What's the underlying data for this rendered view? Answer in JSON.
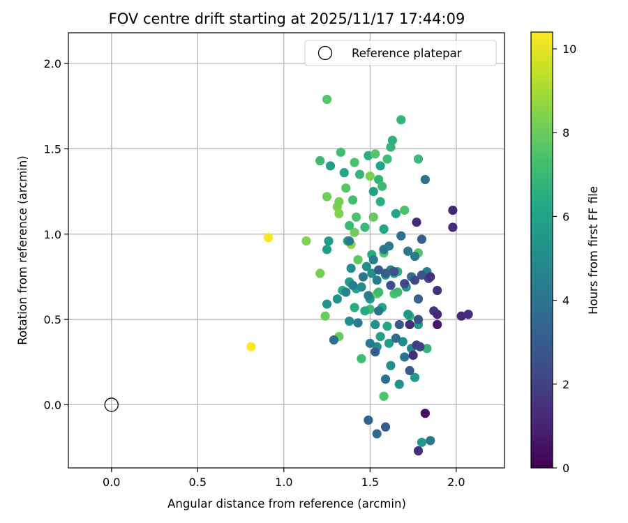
{
  "chart_data": {
    "type": "scatter",
    "title": "FOV centre drift starting at 2025/11/17 17:44:09",
    "xlabel": "Angular distance from reference (arcmin)",
    "ylabel": "Rotation from reference (arcmin)",
    "xlim": [
      -0.25,
      2.28
    ],
    "ylim": [
      -0.37,
      2.18
    ],
    "xticks": [
      0.0,
      0.5,
      1.0,
      1.5,
      2.0
    ],
    "xtick_labels": [
      "0.0",
      "0.5",
      "1.0",
      "1.5",
      "2.0"
    ],
    "yticks": [
      0.0,
      0.5,
      1.0,
      1.5,
      2.0
    ],
    "ytick_labels": [
      "0.0",
      "0.5",
      "1.0",
      "1.5",
      "2.0"
    ],
    "grid": true,
    "legend": {
      "position": "top-right",
      "entries": [
        "Reference platepar"
      ]
    },
    "reference": {
      "label": "Reference platepar",
      "x": 0.0,
      "y": 0.0
    },
    "colorbar": {
      "label": "Hours from first FF file",
      "colormap": "viridis",
      "min": 0,
      "max": 10.4,
      "ticks": [
        0,
        2,
        4,
        6,
        8,
        10
      ],
      "tick_labels": [
        "0",
        "2",
        "4",
        "6",
        "8",
        "10"
      ]
    },
    "colormap_stops": [
      "#440154",
      "#482475",
      "#414487",
      "#355f8d",
      "#2a788e",
      "#21918c",
      "#22a884",
      "#44bf70",
      "#7ad151",
      "#bddf26",
      "#fde725"
    ],
    "points": [
      [
        0.81,
        0.34,
        10.4
      ],
      [
        0.91,
        0.98,
        10.3
      ],
      [
        1.13,
        0.96,
        8.4
      ],
      [
        1.21,
        0.77,
        8.2
      ],
      [
        1.24,
        0.52,
        8.0
      ],
      [
        1.32,
        0.4,
        8.0
      ],
      [
        1.25,
        1.79,
        7.6
      ],
      [
        1.25,
        1.22,
        8.1
      ],
      [
        1.31,
        1.16,
        8.3
      ],
      [
        1.32,
        1.19,
        8.2
      ],
      [
        1.32,
        1.12,
        8.4
      ],
      [
        1.36,
        1.27,
        7.6
      ],
      [
        1.39,
        0.94,
        8.6
      ],
      [
        1.41,
        1.01,
        8.1
      ],
      [
        1.43,
        0.85,
        7.8
      ],
      [
        1.45,
        0.27,
        7.2
      ],
      [
        1.5,
        1.34,
        8.3
      ],
      [
        1.52,
        1.1,
        7.9
      ],
      [
        1.54,
        0.65,
        8.1
      ],
      [
        1.55,
        0.66,
        7.0
      ],
      [
        1.58,
        0.05,
        7.4
      ],
      [
        1.58,
        0.89,
        7.5
      ],
      [
        1.58,
        0.91,
        8.0
      ],
      [
        1.6,
        1.44,
        7.2
      ],
      [
        1.64,
        0.65,
        7.5
      ],
      [
        1.66,
        0.66,
        7.0
      ],
      [
        1.68,
        1.67,
        6.8
      ],
      [
        1.7,
        1.14,
        7.4
      ],
      [
        1.73,
        0.52,
        6.7
      ],
      [
        1.78,
        0.89,
        7.6
      ],
      [
        1.78,
        1.44,
        7.0
      ],
      [
        1.83,
        0.33,
        6.8
      ],
      [
        1.21,
        1.43,
        7.0
      ],
      [
        1.27,
        1.4,
        5.9
      ],
      [
        1.33,
        1.48,
        7.2
      ],
      [
        1.35,
        1.36,
        6.2
      ],
      [
        1.37,
        0.96,
        6.3
      ],
      [
        1.38,
        1.05,
        7.0
      ],
      [
        1.4,
        1.2,
        7.2
      ],
      [
        1.41,
        1.42,
        7.4
      ],
      [
        1.42,
        1.1,
        7.4
      ],
      [
        1.44,
        1.35,
        6.8
      ],
      [
        1.47,
        1.04,
        6.9
      ],
      [
        1.49,
        1.46,
        6.6
      ],
      [
        1.5,
        0.56,
        7.1
      ],
      [
        1.51,
        0.88,
        6.5
      ],
      [
        1.52,
        1.25,
        6.0
      ],
      [
        1.53,
        1.47,
        7.6
      ],
      [
        1.55,
        1.32,
        6.7
      ],
      [
        1.56,
        1.19,
        6.6
      ],
      [
        1.56,
        1.4,
        6.0
      ],
      [
        1.57,
        1.28,
        7.1
      ],
      [
        1.58,
        1.03,
        6.1
      ],
      [
        1.62,
        1.51,
        6.8
      ],
      [
        1.63,
        1.55,
        6.6
      ],
      [
        1.65,
        1.12,
        6.0
      ],
      [
        1.66,
        0.78,
        6.6
      ],
      [
        1.26,
        0.96,
        5.7
      ],
      [
        1.25,
        0.91,
        5.7
      ],
      [
        1.25,
        0.59,
        5.4
      ],
      [
        1.31,
        0.62,
        5.3
      ],
      [
        1.34,
        0.67,
        6.4
      ],
      [
        1.38,
        0.72,
        5.9
      ],
      [
        1.38,
        0.49,
        5.0
      ],
      [
        1.39,
        0.8,
        5.1
      ],
      [
        1.41,
        0.57,
        6.4
      ],
      [
        1.42,
        0.68,
        6.2
      ],
      [
        1.45,
        0.69,
        5.0
      ],
      [
        1.47,
        0.55,
        6.3
      ],
      [
        1.48,
        0.81,
        5.0
      ],
      [
        1.5,
        0.62,
        5.7
      ],
      [
        1.51,
        0.77,
        5.1
      ],
      [
        1.53,
        0.47,
        5.2
      ],
      [
        1.54,
        0.34,
        5.0
      ],
      [
        1.56,
        0.4,
        6.0
      ],
      [
        1.57,
        0.57,
        6.3
      ],
      [
        1.59,
        0.76,
        6.1
      ],
      [
        1.6,
        0.46,
        6.2
      ],
      [
        1.61,
        0.36,
        5.9
      ],
      [
        1.62,
        0.23,
        5.2
      ],
      [
        1.64,
        0.77,
        6.4
      ],
      [
        1.67,
        0.12,
        5.3
      ],
      [
        1.69,
        0.37,
        5.0
      ],
      [
        1.71,
        0.69,
        5.6
      ],
      [
        1.72,
        0.53,
        5.4
      ],
      [
        1.74,
        0.33,
        4.8
      ],
      [
        1.76,
        0.16,
        5.6
      ],
      [
        1.78,
        0.47,
        5.9
      ],
      [
        1.8,
        -0.22,
        5.5
      ],
      [
        1.82,
        1.32,
        4.0
      ],
      [
        1.83,
        0.78,
        4.5
      ],
      [
        1.29,
        0.38,
        3.8
      ],
      [
        1.36,
        0.66,
        4.6
      ],
      [
        1.38,
        0.96,
        4.3
      ],
      [
        1.4,
        0.7,
        4.4
      ],
      [
        1.43,
        0.48,
        4.2
      ],
      [
        1.46,
        0.75,
        4.0
      ],
      [
        1.49,
        0.64,
        4.4
      ],
      [
        1.5,
        0.36,
        4.1
      ],
      [
        1.52,
        0.85,
        4.3
      ],
      [
        1.54,
        0.73,
        4.4
      ],
      [
        1.55,
        0.55,
        4.0
      ],
      [
        1.58,
        0.91,
        4.1
      ],
      [
        1.59,
        0.15,
        4.0
      ],
      [
        1.61,
        0.93,
        4.2
      ],
      [
        1.62,
        0.79,
        4.5
      ],
      [
        1.65,
        0.39,
        3.6
      ],
      [
        1.68,
        0.99,
        3.8
      ],
      [
        1.7,
        0.28,
        3.9
      ],
      [
        1.72,
        0.9,
        4.1
      ],
      [
        1.74,
        0.75,
        3.8
      ],
      [
        1.76,
        0.87,
        4.3
      ],
      [
        1.78,
        0.62,
        3.2
      ],
      [
        1.8,
        0.97,
        3.3
      ],
      [
        1.85,
        -0.21,
        4.1
      ],
      [
        1.49,
        -0.09,
        3.2
      ],
      [
        1.54,
        -0.17,
        3.5
      ],
      [
        1.59,
        -0.13,
        3.0
      ],
      [
        1.53,
        0.31,
        3.0
      ],
      [
        1.55,
        0.79,
        2.9
      ],
      [
        1.59,
        0.77,
        3.1
      ],
      [
        1.62,
        0.7,
        2.5
      ],
      [
        1.64,
        0.78,
        2.6
      ],
      [
        1.67,
        0.47,
        2.9
      ],
      [
        1.7,
        0.71,
        2.4
      ],
      [
        1.73,
        0.2,
        3.0
      ],
      [
        1.76,
        0.73,
        2.3
      ],
      [
        1.78,
        0.5,
        2.5
      ],
      [
        1.8,
        0.76,
        2.6
      ],
      [
        1.84,
        0.74,
        2.3
      ],
      [
        1.73,
        0.47,
        1.3
      ],
      [
        1.75,
        0.29,
        1.3
      ],
      [
        1.77,
        0.35,
        1.8
      ],
      [
        1.77,
        1.07,
        1.2
      ],
      [
        1.78,
        -0.27,
        1.4
      ],
      [
        1.79,
        0.34,
        2.0
      ],
      [
        1.85,
        0.75,
        1.5
      ],
      [
        1.87,
        0.55,
        1.6
      ],
      [
        1.89,
        0.67,
        1.4
      ],
      [
        1.89,
        0.53,
        1.2
      ],
      [
        1.89,
        0.47,
        0.7
      ],
      [
        1.82,
        -0.05,
        0.4
      ],
      [
        1.98,
        1.14,
        1.1
      ],
      [
        1.98,
        1.04,
        1.3
      ],
      [
        2.03,
        0.52,
        1.2
      ],
      [
        2.07,
        0.53,
        1.3
      ]
    ]
  }
}
